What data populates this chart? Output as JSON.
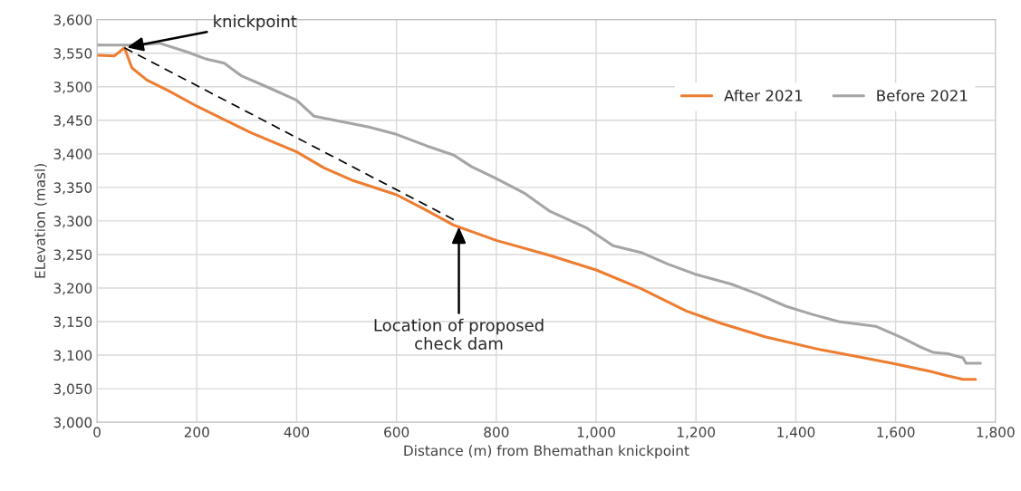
{
  "chart_data": {
    "type": "line",
    "xlabel": "Distance (m) from Bhemathan knickpoint",
    "ylabel": "ELevation (masl)",
    "xlim": [
      0,
      1800
    ],
    "xticks": [
      {
        "value": 0,
        "label": "0"
      },
      {
        "value": 200,
        "label": "200"
      },
      {
        "value": 400,
        "label": "400"
      },
      {
        "value": 600,
        "label": "600"
      },
      {
        "value": 800,
        "label": "800"
      },
      {
        "value": 1000,
        "label": "1,000"
      },
      {
        "value": 1200,
        "label": "1,200"
      },
      {
        "value": 1400,
        "label": "1,400"
      },
      {
        "value": 1600,
        "label": "1,600"
      },
      {
        "value": 1800,
        "label": "1,800"
      }
    ],
    "ylim": [
      3000,
      3600
    ],
    "yticks": [
      {
        "value": 3000,
        "label": "3,000"
      },
      {
        "value": 3050,
        "label": "3,050"
      },
      {
        "value": 3100,
        "label": "3,100"
      },
      {
        "value": 3150,
        "label": "3,150"
      },
      {
        "value": 3200,
        "label": "3,200"
      },
      {
        "value": 3250,
        "label": "3,250"
      },
      {
        "value": 3300,
        "label": "3,300"
      },
      {
        "value": 3350,
        "label": "3,350"
      },
      {
        "value": 3400,
        "label": "3,400"
      },
      {
        "value": 3450,
        "label": "3,450"
      },
      {
        "value": 3500,
        "label": "3,500"
      },
      {
        "value": 3550,
        "label": "3,550"
      },
      {
        "value": 3600,
        "label": "3,600"
      }
    ],
    "grid": true,
    "legend": "top right",
    "series": [
      {
        "name": "After 2021",
        "color": "#ed7d31",
        "x": [
          0,
          35,
          55,
          70,
          100,
          143,
          200,
          255,
          310,
          400,
          455,
          510,
          600,
          660,
          714,
          800,
          906,
          1000,
          1090,
          1180,
          1252,
          1340,
          1450,
          1522,
          1593,
          1668,
          1705,
          1735,
          1760
        ],
        "values": [
          3547,
          3546,
          3558,
          3528,
          3510,
          3494,
          3471,
          3451,
          3431,
          3403,
          3379,
          3361,
          3339,
          3316,
          3294,
          3271,
          3249,
          3227,
          3199,
          3166,
          3147,
          3127,
          3108,
          3098,
          3088,
          3076,
          3069,
          3064,
          3064
        ]
      },
      {
        "name": "Before 2021",
        "color": "#a5a5a5",
        "x": [
          0,
          80,
          125,
          180,
          216,
          255,
          290,
          343,
          400,
          435,
          490,
          545,
          600,
          660,
          715,
          750,
          800,
          855,
          906,
          980,
          1034,
          1090,
          1143,
          1197,
          1270,
          1324,
          1380,
          1432,
          1486,
          1560,
          1613,
          1650,
          1676,
          1705,
          1735,
          1741,
          1770
        ],
        "values": [
          3562,
          3562,
          3565,
          3552,
          3542,
          3535,
          3516,
          3499,
          3480,
          3456,
          3448,
          3440,
          3429,
          3412,
          3398,
          3381,
          3363,
          3342,
          3315,
          3290,
          3263,
          3253,
          3236,
          3221,
          3206,
          3191,
          3173,
          3161,
          3150,
          3143,
          3126,
          3112,
          3104,
          3102,
          3096,
          3088,
          3088
        ]
      },
      {
        "type": "line",
        "line_style": "dashed",
        "color": "#000000",
        "x": [
          55,
          720
        ],
        "values": [
          3558,
          3300
        ]
      }
    ],
    "annotations": [
      {
        "text": "knickpoint",
        "x": 55,
        "y": 3558
      },
      {
        "text": "Location of proposed\ncheck dam",
        "x": 725,
        "y": 3295
      }
    ]
  }
}
